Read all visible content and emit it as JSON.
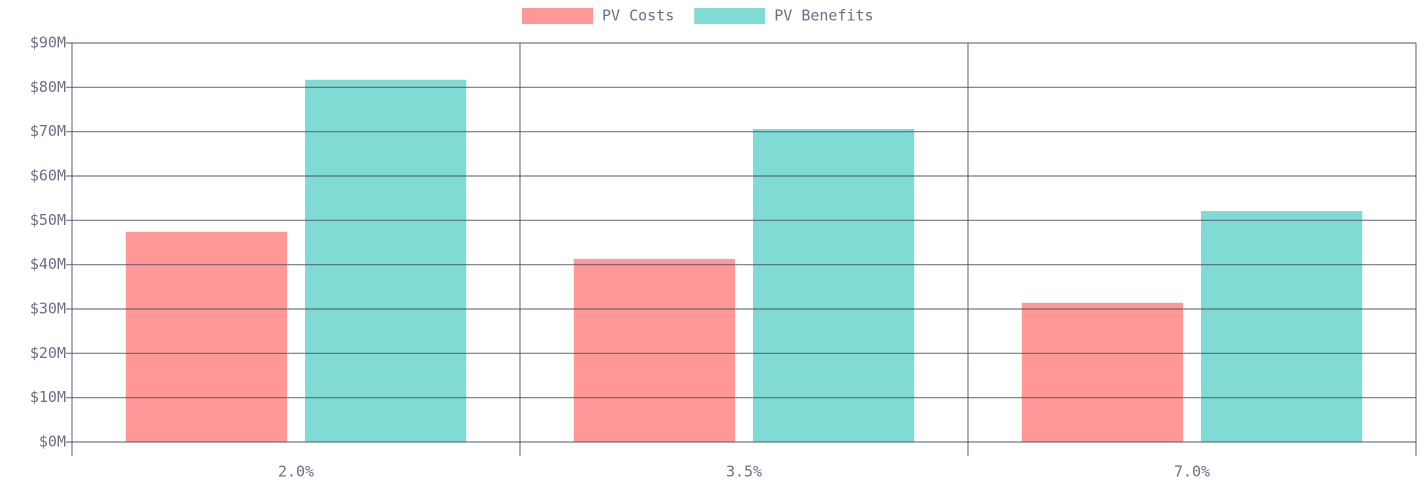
{
  "chart_data": {
    "type": "bar",
    "categories": [
      "2.0%",
      "3.5%",
      "7.0%"
    ],
    "series": [
      {
        "name": "PV Costs",
        "color": "#ff9896",
        "values": [
          47.4,
          41.3,
          31.4
        ]
      },
      {
        "name": "PV Benefits",
        "color": "#7fdbd4",
        "values": [
          81.7,
          70.6,
          52.1
        ]
      }
    ],
    "ylim": [
      0,
      90
    ],
    "yticks": [
      {
        "value": 0,
        "label": "$0M"
      },
      {
        "value": 10,
        "label": "$10M"
      },
      {
        "value": 20,
        "label": "$20M"
      },
      {
        "value": 30,
        "label": "$30M"
      },
      {
        "value": 40,
        "label": "$40M"
      },
      {
        "value": 50,
        "label": "$50M"
      },
      {
        "value": 60,
        "label": "$60M"
      },
      {
        "value": 70,
        "label": "$70M"
      },
      {
        "value": 80,
        "label": "$80M"
      },
      {
        "value": 90,
        "label": "$90M"
      }
    ],
    "grid": true,
    "legend": "top"
  }
}
